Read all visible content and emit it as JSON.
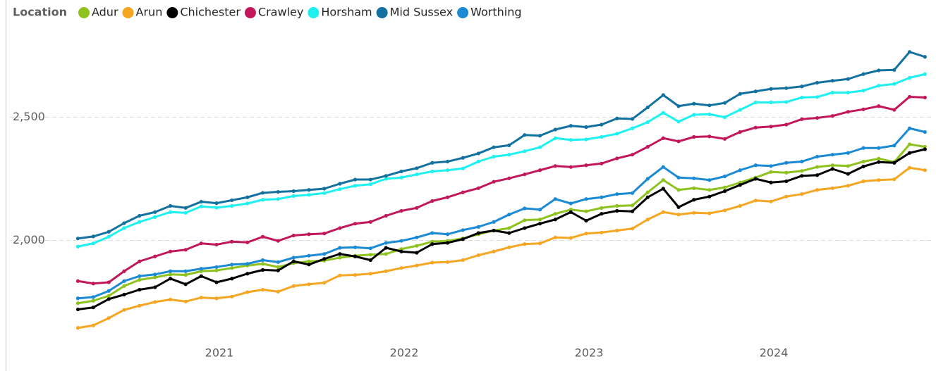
{
  "chart_data": {
    "type": "line",
    "legend_title": "Location",
    "legend": "top-left",
    "grid": true,
    "x": [
      2020.25,
      2020.333,
      2020.417,
      2020.5,
      2020.583,
      2020.667,
      2020.75,
      2020.833,
      2020.917,
      2021.0,
      2021.083,
      2021.167,
      2021.25,
      2021.333,
      2021.417,
      2021.5,
      2021.583,
      2021.667,
      2021.75,
      2021.833,
      2021.917,
      2022.0,
      2022.083,
      2022.167,
      2022.25,
      2022.333,
      2022.417,
      2022.5,
      2022.583,
      2022.667,
      2022.75,
      2022.833,
      2022.917,
      2023.0,
      2023.083,
      2023.167,
      2023.25,
      2023.333,
      2023.417,
      2023.5,
      2023.583,
      2023.667,
      2023.75,
      2023.833,
      2023.917,
      2024.0,
      2024.083,
      2024.167,
      2024.25,
      2024.333,
      2024.417,
      2024.5,
      2024.583,
      2024.667,
      2024.75,
      2024.833
    ],
    "xlim": [
      2020.2,
      2024.87
    ],
    "xticks": [
      2021,
      2022,
      2023,
      2024
    ],
    "ylim": [
      1490,
      2860
    ],
    "yticks": [
      {
        "value": 2000,
        "label": "2,000"
      },
      {
        "value": 2500,
        "label": "2,500"
      }
    ],
    "series": [
      {
        "name": "Adur",
        "color": "#8dc21f",
        "values": [
          1745,
          1755,
          1775,
          1815,
          1840,
          1850,
          1862,
          1860,
          1875,
          1878,
          1888,
          1898,
          1905,
          1892,
          1908,
          1915,
          1918,
          1930,
          1938,
          1942,
          1945,
          1965,
          1978,
          1995,
          1998,
          2008,
          2025,
          2040,
          2050,
          2082,
          2085,
          2108,
          2125,
          2118,
          2132,
          2140,
          2142,
          2195,
          2245,
          2205,
          2212,
          2205,
          2215,
          2235,
          2255,
          2278,
          2275,
          2282,
          2298,
          2305,
          2302,
          2320,
          2332,
          2318,
          2390,
          2380
        ]
      },
      {
        "name": "Arun",
        "color": "#f5a623",
        "values": [
          1645,
          1655,
          1685,
          1718,
          1735,
          1750,
          1760,
          1752,
          1768,
          1765,
          1772,
          1790,
          1800,
          1792,
          1815,
          1822,
          1828,
          1858,
          1860,
          1865,
          1875,
          1888,
          1898,
          1910,
          1912,
          1920,
          1940,
          1955,
          1972,
          1985,
          1988,
          2012,
          2010,
          2028,
          2032,
          2040,
          2048,
          2085,
          2115,
          2105,
          2112,
          2110,
          2122,
          2140,
          2162,
          2158,
          2178,
          2188,
          2205,
          2212,
          2222,
          2240,
          2245,
          2248,
          2295,
          2285
        ]
      },
      {
        "name": "Chichester",
        "color": "#000000",
        "values": [
          1720,
          1728,
          1762,
          1780,
          1800,
          1810,
          1845,
          1822,
          1855,
          1830,
          1845,
          1865,
          1880,
          1878,
          1915,
          1902,
          1925,
          1945,
          1935,
          1920,
          1970,
          1955,
          1950,
          1985,
          1990,
          2005,
          2030,
          2040,
          2030,
          2050,
          2068,
          2085,
          2115,
          2080,
          2108,
          2120,
          2118,
          2175,
          2210,
          2135,
          2165,
          2178,
          2200,
          2225,
          2250,
          2235,
          2240,
          2262,
          2265,
          2290,
          2270,
          2300,
          2318,
          2315,
          2355,
          2370
        ]
      },
      {
        "name": "Crawley",
        "color": "#c2185b",
        "values": [
          1835,
          1825,
          1830,
          1875,
          1915,
          1935,
          1955,
          1962,
          1988,
          1983,
          1995,
          1992,
          2015,
          1998,
          2020,
          2025,
          2028,
          2050,
          2068,
          2075,
          2100,
          2120,
          2132,
          2160,
          2175,
          2195,
          2212,
          2238,
          2252,
          2268,
          2285,
          2302,
          2298,
          2305,
          2312,
          2333,
          2348,
          2380,
          2415,
          2402,
          2420,
          2422,
          2412,
          2440,
          2458,
          2462,
          2470,
          2492,
          2497,
          2505,
          2522,
          2532,
          2545,
          2530,
          2583,
          2580
        ]
      },
      {
        "name": "Horsham",
        "color": "#1ff0f0",
        "values": [
          1975,
          1988,
          2015,
          2050,
          2075,
          2095,
          2115,
          2112,
          2138,
          2133,
          2140,
          2150,
          2165,
          2168,
          2180,
          2185,
          2192,
          2208,
          2222,
          2228,
          2250,
          2255,
          2268,
          2280,
          2285,
          2292,
          2320,
          2340,
          2348,
          2362,
          2378,
          2415,
          2408,
          2410,
          2420,
          2433,
          2455,
          2480,
          2518,
          2482,
          2510,
          2512,
          2500,
          2530,
          2560,
          2560,
          2562,
          2580,
          2582,
          2600,
          2600,
          2608,
          2628,
          2635,
          2660,
          2675
        ]
      },
      {
        "name": "Mid Sussex",
        "color": "#12719e",
        "values": [
          2008,
          2016,
          2035,
          2070,
          2100,
          2115,
          2140,
          2132,
          2157,
          2151,
          2163,
          2175,
          2193,
          2197,
          2200,
          2205,
          2210,
          2230,
          2247,
          2247,
          2262,
          2280,
          2293,
          2315,
          2320,
          2335,
          2353,
          2378,
          2386,
          2428,
          2425,
          2450,
          2465,
          2460,
          2470,
          2495,
          2493,
          2540,
          2590,
          2545,
          2555,
          2548,
          2558,
          2595,
          2605,
          2615,
          2618,
          2625,
          2640,
          2648,
          2655,
          2675,
          2690,
          2692,
          2765,
          2745
        ]
      },
      {
        "name": "Worthing",
        "color": "#1a8ad4",
        "values": [
          1765,
          1770,
          1795,
          1835,
          1855,
          1862,
          1875,
          1875,
          1885,
          1892,
          1902,
          1905,
          1920,
          1912,
          1930,
          1938,
          1945,
          1970,
          1972,
          1968,
          1990,
          1998,
          2012,
          2030,
          2025,
          2042,
          2055,
          2075,
          2105,
          2130,
          2125,
          2168,
          2150,
          2168,
          2175,
          2188,
          2192,
          2250,
          2298,
          2255,
          2252,
          2245,
          2260,
          2285,
          2305,
          2302,
          2315,
          2320,
          2340,
          2348,
          2355,
          2375,
          2375,
          2385,
          2455,
          2440
        ]
      }
    ]
  }
}
